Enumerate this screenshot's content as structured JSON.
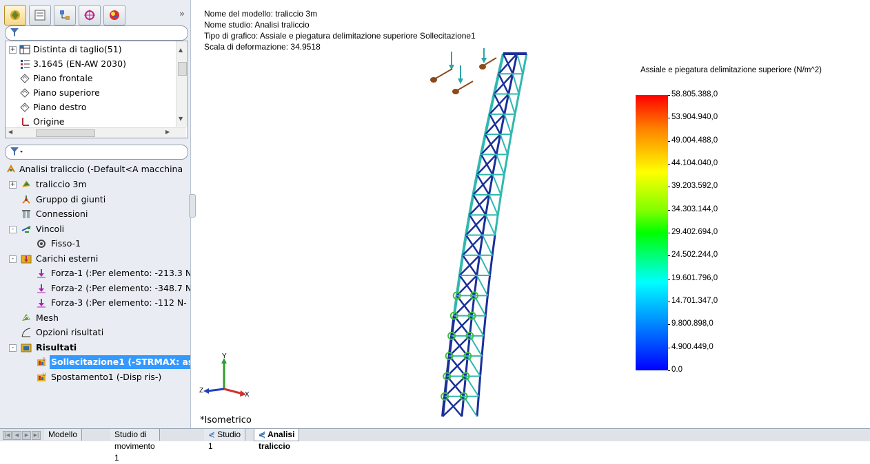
{
  "panel_tabs": [
    {
      "icon": "feature-manager-icon"
    },
    {
      "icon": "property-manager-icon"
    },
    {
      "icon": "configuration-manager-icon"
    },
    {
      "icon": "dimxpert-icon"
    },
    {
      "icon": "appearance-icon"
    }
  ],
  "upper_tree": [
    {
      "label": "Distinta di taglio(51)",
      "icon": "cut-list-icon",
      "expandable": true
    },
    {
      "label": "3.1645 (EN-AW 2030)",
      "icon": "material-icon",
      "expandable": false
    },
    {
      "label": "Piano frontale",
      "icon": "plane-icon",
      "expandable": false
    },
    {
      "label": "Piano superiore",
      "icon": "plane-icon",
      "expandable": false
    },
    {
      "label": "Piano destro",
      "icon": "plane-icon",
      "expandable": false
    },
    {
      "label": "Origine",
      "icon": "origin-icon",
      "expandable": false
    }
  ],
  "sim_tree": {
    "root": "Analisi traliccio (-Default<A macchina",
    "items": [
      {
        "label": "traliccio 3m",
        "icon": "part-icon",
        "level": 1,
        "expander": "+"
      },
      {
        "label": "Gruppo di giunti",
        "icon": "joint-group-icon",
        "level": 1,
        "expander": ""
      },
      {
        "label": "Connessioni",
        "icon": "connections-icon",
        "level": 1,
        "expander": ""
      },
      {
        "label": "Vincoli",
        "icon": "fixtures-icon",
        "level": 1,
        "expander": "-"
      },
      {
        "label": "Fisso-1",
        "icon": "fixed-icon",
        "level": 2,
        "expander": ""
      },
      {
        "label": "Carichi esterni",
        "icon": "external-loads-icon",
        "level": 1,
        "expander": "-"
      },
      {
        "label": "Forza-1 (:Per elemento: -213.3 N",
        "icon": "force-icon",
        "level": 2,
        "expander": ""
      },
      {
        "label": "Forza-2 (:Per elemento: -348.7 N",
        "icon": "force-icon",
        "level": 2,
        "expander": ""
      },
      {
        "label": "Forza-3 (:Per elemento: -112 N-",
        "icon": "force-icon",
        "level": 2,
        "expander": ""
      },
      {
        "label": "Mesh",
        "icon": "mesh-icon",
        "level": 1,
        "expander": ""
      },
      {
        "label": "Opzioni risultati",
        "icon": "result-options-icon",
        "level": 1,
        "expander": ""
      },
      {
        "label": "Risultati",
        "icon": "results-folder-icon",
        "level": 1,
        "expander": "-",
        "bold": true
      },
      {
        "label": "Sollecitazione1 (-STRMAX: ass",
        "icon": "stress-plot-icon",
        "level": 2,
        "expander": "",
        "selected": true
      },
      {
        "label": "Spostamento1 (-Disp ris-)",
        "icon": "displacement-plot-icon",
        "level": 2,
        "expander": ""
      }
    ]
  },
  "plot_info": {
    "model": "Nome del modello: traliccio 3m",
    "study": "Nome studio: Analisi traliccio",
    "plot_type": "Tipo di grafico: Assiale e piegatura delimitazione superiore Sollecitazione1",
    "scale": "Scala di deformazione: 34.9518"
  },
  "legend": {
    "title": "Assiale e piegatura delimitazione superiore (N/m^2)",
    "values": [
      "58.805.388,0",
      "53.904.940,0",
      "49.004.488,0",
      "44.104.040,0",
      "39.203.592,0",
      "34.303.144,0",
      "29.402.694,0",
      "24.502.244,0",
      "19.601.796,0",
      "14.701.347,0",
      "9.800.898,0",
      "4.900.449,0",
      "0.0"
    ]
  },
  "triad": {
    "x": "X",
    "y": "Y",
    "z": "Z"
  },
  "view_name": "*Isometrico",
  "bottom_tabs": [
    {
      "label": "Modello",
      "active": false
    },
    {
      "label": "Studio di movimento 1",
      "active": false
    },
    {
      "label": "Studio 1",
      "active": false
    },
    {
      "label": "Analisi traliccio",
      "active": true
    }
  ],
  "colors": {
    "selection": "#3399ff",
    "panel_bg": "#e9edf3",
    "truss_blue": "#1a2f9a",
    "truss_cyan": "#2fb8b0",
    "truss_green": "#3fbf3f"
  }
}
